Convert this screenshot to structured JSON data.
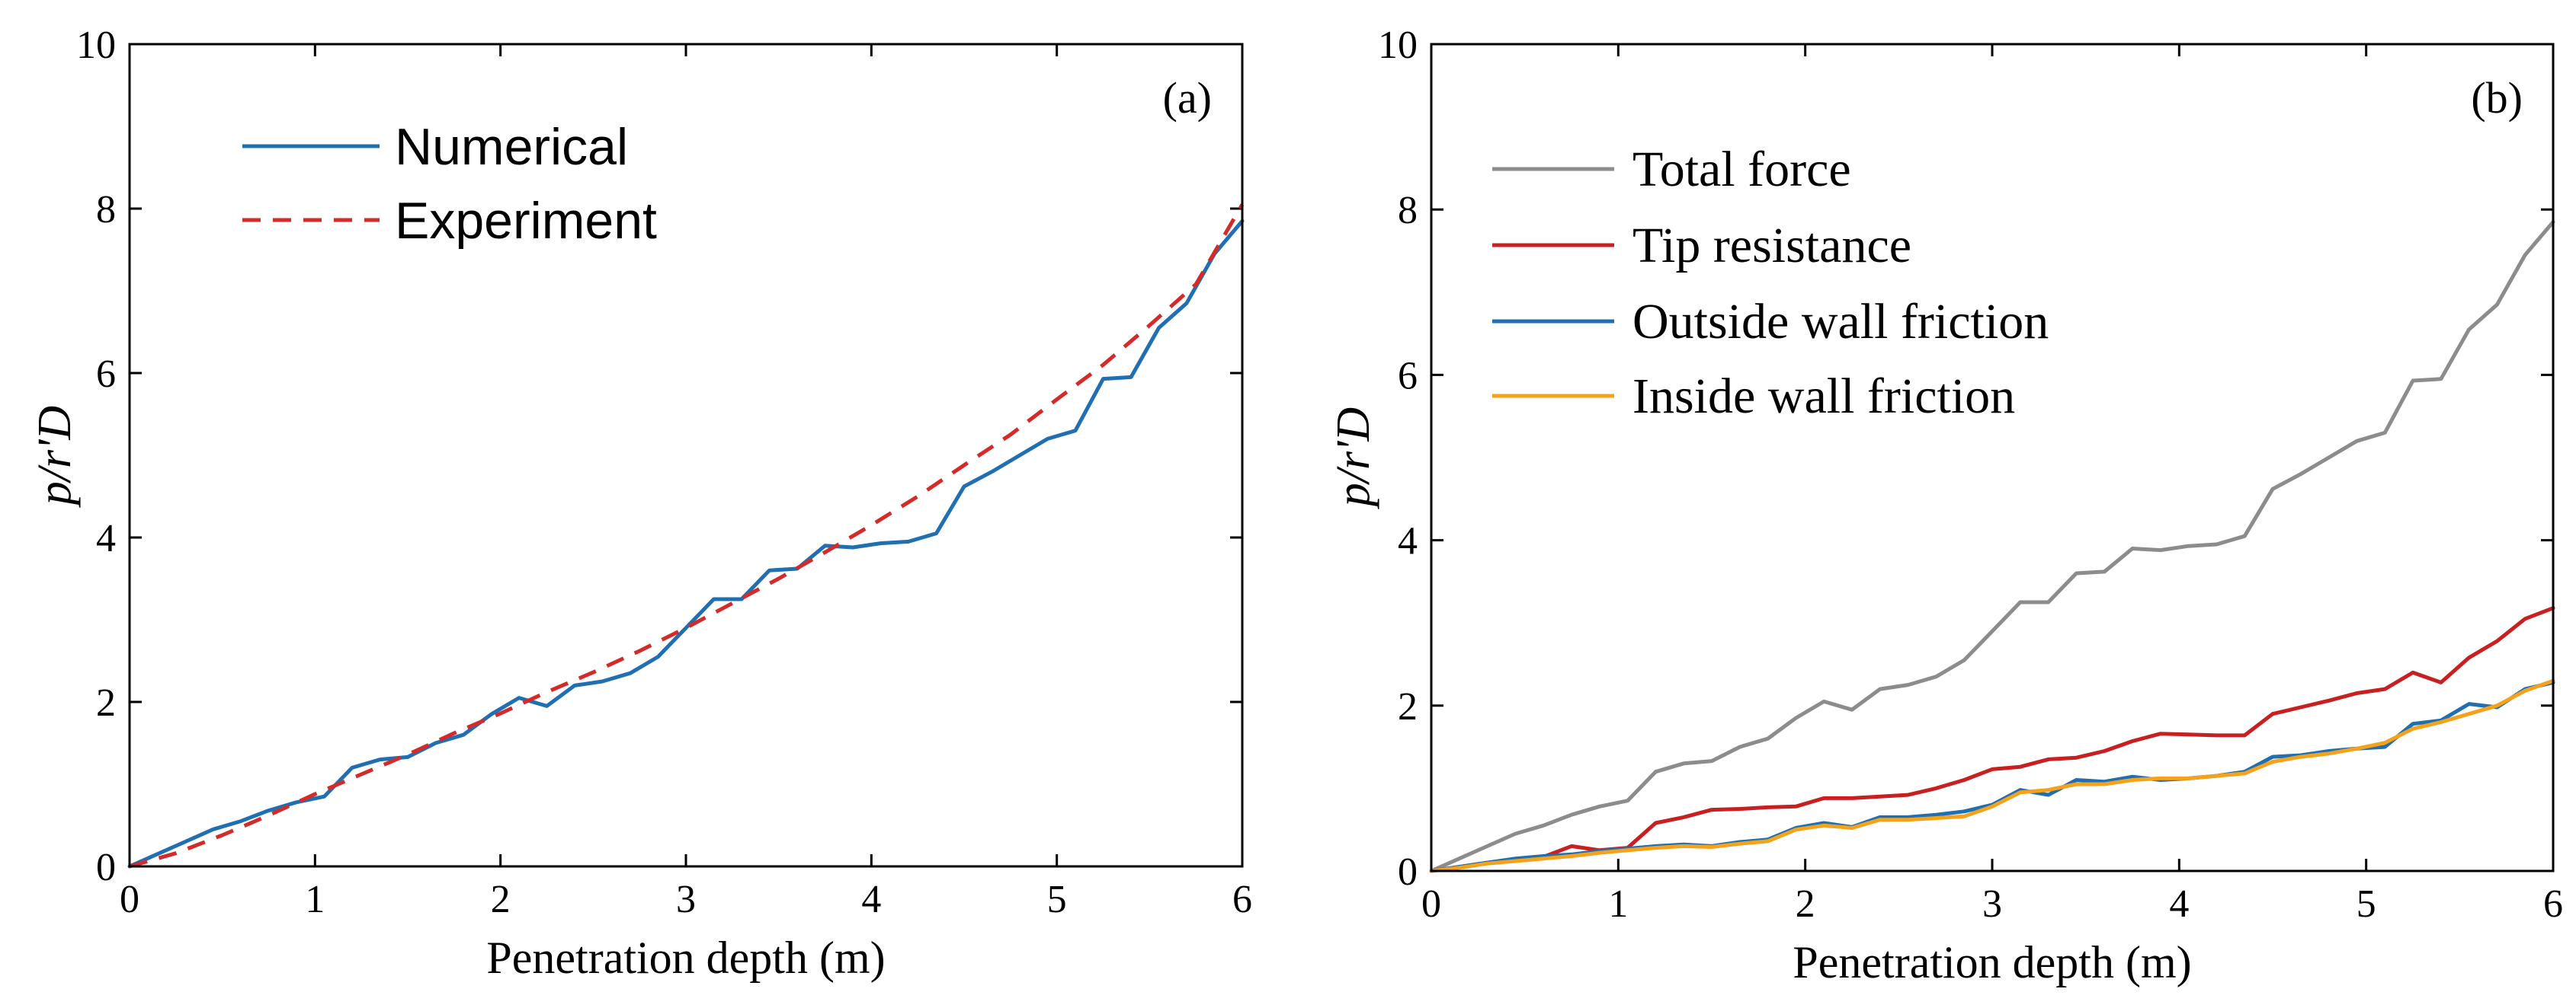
{
  "chart_data": [
    {
      "type": "line",
      "panel_label": "(a)",
      "xlabel": "Penetration depth (m)",
      "ylabel": "p/r'D",
      "xlim": [
        0,
        6
      ],
      "ylim": [
        0,
        10
      ],
      "xticks": [
        0,
        1,
        2,
        3,
        4,
        5,
        6
      ],
      "yticks": [
        0,
        2,
        4,
        6,
        8,
        10
      ],
      "legend_position": "top-left",
      "series": [
        {
          "name": "Numerical",
          "color": "#1f6fb2",
          "style": "solid",
          "x": [
            0,
            0.15,
            0.3,
            0.45,
            0.6,
            0.75,
            0.9,
            1.05,
            1.2,
            1.35,
            1.5,
            1.65,
            1.8,
            1.95,
            2.1,
            2.25,
            2.4,
            2.55,
            2.7,
            2.85,
            3.0,
            3.15,
            3.3,
            3.45,
            3.6,
            3.75,
            3.9,
            4.05,
            4.2,
            4.35,
            4.5,
            4.65,
            4.8,
            4.95,
            5.1,
            5.25,
            5.4,
            5.55,
            5.7,
            5.85,
            6.0
          ],
          "y": [
            0,
            0.15,
            0.3,
            0.45,
            0.55,
            0.68,
            0.78,
            0.85,
            1.2,
            1.3,
            1.33,
            1.5,
            1.6,
            1.85,
            2.05,
            1.95,
            2.2,
            2.25,
            2.35,
            2.55,
            2.9,
            3.25,
            3.25,
            3.6,
            3.62,
            3.9,
            3.88,
            3.93,
            3.95,
            4.05,
            4.62,
            4.8,
            5.0,
            5.2,
            5.3,
            5.93,
            5.95,
            6.55,
            6.85,
            7.45,
            7.85
          ]
        },
        {
          "name": "Experiment",
          "color": "#d42a2a",
          "style": "dashed",
          "x": [
            0,
            0.25,
            0.5,
            0.75,
            1.0,
            1.25,
            1.5,
            1.75,
            2.0,
            2.25,
            2.5,
            2.75,
            3.0,
            3.25,
            3.5,
            3.75,
            4.0,
            4.25,
            4.5,
            4.75,
            5.0,
            5.25,
            5.5,
            5.75,
            6.0
          ],
          "y": [
            0,
            0.16,
            0.38,
            0.62,
            0.88,
            1.12,
            1.36,
            1.62,
            1.86,
            2.12,
            2.36,
            2.62,
            2.9,
            3.2,
            3.5,
            3.82,
            4.15,
            4.5,
            4.88,
            5.25,
            5.68,
            6.1,
            6.58,
            7.08,
            8.05
          ]
        }
      ]
    },
    {
      "type": "line",
      "panel_label": "(b)",
      "xlabel": "Penetration depth (m)",
      "ylabel": "p/r'D",
      "xlim": [
        0,
        6
      ],
      "ylim": [
        0,
        10
      ],
      "xticks": [
        0,
        1,
        2,
        3,
        4,
        5,
        6
      ],
      "yticks": [
        0,
        2,
        4,
        6,
        8,
        10
      ],
      "legend_position": "top-left",
      "series": [
        {
          "name": "Total force",
          "color": "#8c8c8c",
          "style": "solid",
          "x": [
            0,
            0.15,
            0.3,
            0.45,
            0.6,
            0.75,
            0.9,
            1.05,
            1.2,
            1.35,
            1.5,
            1.65,
            1.8,
            1.95,
            2.1,
            2.25,
            2.4,
            2.55,
            2.7,
            2.85,
            3.0,
            3.15,
            3.3,
            3.45,
            3.6,
            3.75,
            3.9,
            4.05,
            4.2,
            4.35,
            4.5,
            4.65,
            4.8,
            4.95,
            5.1,
            5.25,
            5.4,
            5.55,
            5.7,
            5.85,
            6.0
          ],
          "y": [
            0,
            0.15,
            0.3,
            0.45,
            0.55,
            0.68,
            0.78,
            0.85,
            1.2,
            1.3,
            1.33,
            1.5,
            1.6,
            1.85,
            2.05,
            1.95,
            2.2,
            2.25,
            2.35,
            2.55,
            2.9,
            3.25,
            3.25,
            3.6,
            3.62,
            3.9,
            3.88,
            3.93,
            3.95,
            4.05,
            4.62,
            4.8,
            5.0,
            5.2,
            5.3,
            5.93,
            5.95,
            6.55,
            6.85,
            7.45,
            7.85
          ]
        },
        {
          "name": "Tip resistance",
          "color": "#c82020",
          "style": "solid",
          "x": [
            0,
            0.15,
            0.3,
            0.45,
            0.6,
            0.75,
            0.9,
            1.05,
            1.2,
            1.35,
            1.5,
            1.65,
            1.8,
            1.95,
            2.1,
            2.25,
            2.4,
            2.55,
            2.7,
            2.85,
            3.0,
            3.15,
            3.3,
            3.45,
            3.6,
            3.75,
            3.9,
            4.05,
            4.2,
            4.35,
            4.5,
            4.65,
            4.8,
            4.95,
            5.1,
            5.25,
            5.4,
            5.55,
            5.7,
            5.85,
            6.0
          ],
          "y": [
            0,
            0.05,
            0.1,
            0.14,
            0.17,
            0.3,
            0.25,
            0.28,
            0.58,
            0.65,
            0.74,
            0.75,
            0.77,
            0.78,
            0.88,
            0.88,
            0.9,
            0.92,
            1.0,
            1.1,
            1.23,
            1.26,
            1.35,
            1.37,
            1.45,
            1.57,
            1.66,
            1.65,
            1.64,
            1.64,
            1.9,
            1.98,
            2.06,
            2.15,
            2.2,
            2.4,
            2.28,
            2.58,
            2.78,
            3.05,
            3.18
          ]
        },
        {
          "name": "Outside wall friction",
          "color": "#1f6fb2",
          "style": "solid",
          "x": [
            0,
            0.15,
            0.3,
            0.45,
            0.6,
            0.75,
            0.9,
            1.05,
            1.2,
            1.35,
            1.5,
            1.65,
            1.8,
            1.95,
            2.1,
            2.25,
            2.4,
            2.55,
            2.7,
            2.85,
            3.0,
            3.15,
            3.3,
            3.45,
            3.6,
            3.75,
            3.9,
            4.05,
            4.2,
            4.35,
            4.5,
            4.65,
            4.8,
            4.95,
            5.1,
            5.25,
            5.4,
            5.55,
            5.7,
            5.85,
            6.0
          ],
          "y": [
            0,
            0.05,
            0.1,
            0.15,
            0.18,
            0.2,
            0.24,
            0.27,
            0.3,
            0.32,
            0.3,
            0.35,
            0.38,
            0.52,
            0.58,
            0.53,
            0.65,
            0.65,
            0.68,
            0.72,
            0.8,
            0.98,
            0.92,
            1.1,
            1.08,
            1.14,
            1.1,
            1.12,
            1.15,
            1.2,
            1.38,
            1.4,
            1.45,
            1.48,
            1.5,
            1.78,
            1.82,
            2.02,
            1.98,
            2.2,
            2.28
          ]
        },
        {
          "name": "Inside wall friction",
          "color": "#f5a21b",
          "style": "solid",
          "x": [
            0,
            0.15,
            0.3,
            0.45,
            0.6,
            0.75,
            0.9,
            1.05,
            1.2,
            1.35,
            1.5,
            1.65,
            1.8,
            1.95,
            2.1,
            2.25,
            2.4,
            2.55,
            2.7,
            2.85,
            3.0,
            3.15,
            3.3,
            3.45,
            3.6,
            3.75,
            3.9,
            4.05,
            4.2,
            4.35,
            4.5,
            4.65,
            4.8,
            4.95,
            5.1,
            5.25,
            5.4,
            5.55,
            5.7,
            5.85,
            6.0
          ],
          "y": [
            0,
            0.04,
            0.09,
            0.12,
            0.15,
            0.18,
            0.22,
            0.25,
            0.28,
            0.3,
            0.29,
            0.33,
            0.36,
            0.5,
            0.55,
            0.52,
            0.62,
            0.62,
            0.64,
            0.66,
            0.78,
            0.95,
            0.98,
            1.05,
            1.05,
            1.1,
            1.12,
            1.12,
            1.15,
            1.18,
            1.32,
            1.38,
            1.42,
            1.48,
            1.55,
            1.72,
            1.8,
            1.9,
            2.0,
            2.18,
            2.3
          ]
        }
      ]
    }
  ]
}
